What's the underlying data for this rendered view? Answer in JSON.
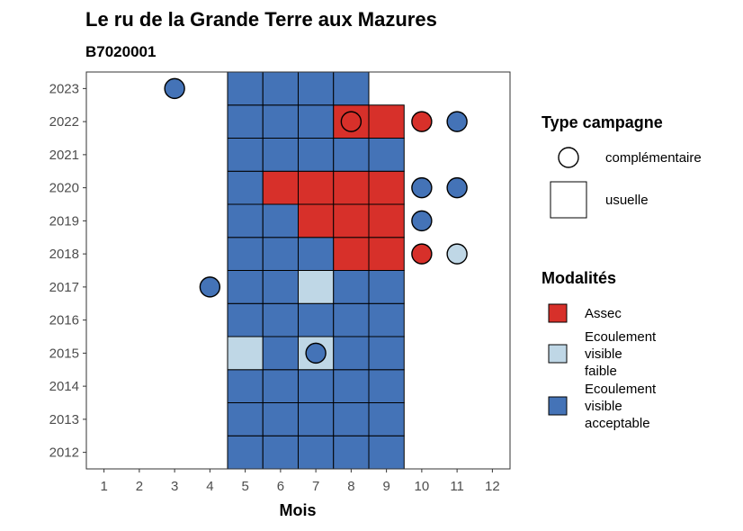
{
  "chart_data": {
    "type": "heatmap",
    "title": "Le ru de la Grande Terre aux Mazures",
    "subtitle": "B7020001",
    "xlabel": "Mois",
    "ylabel": "",
    "x_ticks": [
      1,
      2,
      3,
      4,
      5,
      6,
      7,
      8,
      9,
      10,
      11,
      12
    ],
    "y_ticks": [
      2012,
      2013,
      2014,
      2015,
      2016,
      2017,
      2018,
      2019,
      2020,
      2021,
      2022,
      2023
    ],
    "xlim": [
      0.5,
      12.5
    ],
    "ylim": [
      2011.5,
      2023.5
    ],
    "grid": false,
    "legend_position": "right",
    "colors": {
      "Assec": "#d7302a",
      "Ecoulement visible faible": "#bfd7e6",
      "Ecoulement visible acceptable": "#4473b7"
    },
    "legend_campagne": {
      "title": "Type campagne",
      "items": [
        {
          "label": "complémentaire",
          "shape": "circle"
        },
        {
          "label": "usuelle",
          "shape": "square"
        }
      ]
    },
    "legend_modalites": {
      "title": "Modalités",
      "items": [
        {
          "key": "Assec",
          "lines": [
            "Assec"
          ]
        },
        {
          "key": "Ecoulement visible faible",
          "lines": [
            "Ecoulement",
            "visible",
            "faible"
          ]
        },
        {
          "key": "Ecoulement visible acceptable",
          "lines": [
            "Ecoulement",
            "visible",
            "acceptable"
          ]
        }
      ]
    },
    "usuelle": [
      {
        "year": 2012,
        "month": 5,
        "value": "Ecoulement visible acceptable"
      },
      {
        "year": 2012,
        "month": 6,
        "value": "Ecoulement visible acceptable"
      },
      {
        "year": 2012,
        "month": 7,
        "value": "Ecoulement visible acceptable"
      },
      {
        "year": 2012,
        "month": 8,
        "value": "Ecoulement visible acceptable"
      },
      {
        "year": 2012,
        "month": 9,
        "value": "Ecoulement visible acceptable"
      },
      {
        "year": 2013,
        "month": 5,
        "value": "Ecoulement visible acceptable"
      },
      {
        "year": 2013,
        "month": 6,
        "value": "Ecoulement visible acceptable"
      },
      {
        "year": 2013,
        "month": 7,
        "value": "Ecoulement visible acceptable"
      },
      {
        "year": 2013,
        "month": 8,
        "value": "Ecoulement visible acceptable"
      },
      {
        "year": 2013,
        "month": 9,
        "value": "Ecoulement visible acceptable"
      },
      {
        "year": 2014,
        "month": 5,
        "value": "Ecoulement visible acceptable"
      },
      {
        "year": 2014,
        "month": 6,
        "value": "Ecoulement visible acceptable"
      },
      {
        "year": 2014,
        "month": 7,
        "value": "Ecoulement visible acceptable"
      },
      {
        "year": 2014,
        "month": 8,
        "value": "Ecoulement visible acceptable"
      },
      {
        "year": 2014,
        "month": 9,
        "value": "Ecoulement visible acceptable"
      },
      {
        "year": 2015,
        "month": 5,
        "value": "Ecoulement visible faible"
      },
      {
        "year": 2015,
        "month": 6,
        "value": "Ecoulement visible acceptable"
      },
      {
        "year": 2015,
        "month": 7,
        "value": "Ecoulement visible faible"
      },
      {
        "year": 2015,
        "month": 8,
        "value": "Ecoulement visible acceptable"
      },
      {
        "year": 2015,
        "month": 9,
        "value": "Ecoulement visible acceptable"
      },
      {
        "year": 2016,
        "month": 5,
        "value": "Ecoulement visible acceptable"
      },
      {
        "year": 2016,
        "month": 6,
        "value": "Ecoulement visible acceptable"
      },
      {
        "year": 2016,
        "month": 7,
        "value": "Ecoulement visible acceptable"
      },
      {
        "year": 2016,
        "month": 8,
        "value": "Ecoulement visible acceptable"
      },
      {
        "year": 2016,
        "month": 9,
        "value": "Ecoulement visible acceptable"
      },
      {
        "year": 2017,
        "month": 5,
        "value": "Ecoulement visible acceptable"
      },
      {
        "year": 2017,
        "month": 6,
        "value": "Ecoulement visible acceptable"
      },
      {
        "year": 2017,
        "month": 7,
        "value": "Ecoulement visible faible"
      },
      {
        "year": 2017,
        "month": 8,
        "value": "Ecoulement visible acceptable"
      },
      {
        "year": 2017,
        "month": 9,
        "value": "Ecoulement visible acceptable"
      },
      {
        "year": 2018,
        "month": 5,
        "value": "Ecoulement visible acceptable"
      },
      {
        "year": 2018,
        "month": 6,
        "value": "Ecoulement visible acceptable"
      },
      {
        "year": 2018,
        "month": 7,
        "value": "Ecoulement visible acceptable"
      },
      {
        "year": 2018,
        "month": 8,
        "value": "Assec"
      },
      {
        "year": 2018,
        "month": 9,
        "value": "Assec"
      },
      {
        "year": 2019,
        "month": 5,
        "value": "Ecoulement visible acceptable"
      },
      {
        "year": 2019,
        "month": 6,
        "value": "Ecoulement visible acceptable"
      },
      {
        "year": 2019,
        "month": 7,
        "value": "Assec"
      },
      {
        "year": 2019,
        "month": 8,
        "value": "Assec"
      },
      {
        "year": 2019,
        "month": 9,
        "value": "Assec"
      },
      {
        "year": 2020,
        "month": 5,
        "value": "Ecoulement visible acceptable"
      },
      {
        "year": 2020,
        "month": 6,
        "value": "Assec"
      },
      {
        "year": 2020,
        "month": 7,
        "value": "Assec"
      },
      {
        "year": 2020,
        "month": 8,
        "value": "Assec"
      },
      {
        "year": 2020,
        "month": 9,
        "value": "Assec"
      },
      {
        "year": 2021,
        "month": 5,
        "value": "Ecoulement visible acceptable"
      },
      {
        "year": 2021,
        "month": 6,
        "value": "Ecoulement visible acceptable"
      },
      {
        "year": 2021,
        "month": 7,
        "value": "Ecoulement visible acceptable"
      },
      {
        "year": 2021,
        "month": 8,
        "value": "Ecoulement visible acceptable"
      },
      {
        "year": 2021,
        "month": 9,
        "value": "Ecoulement visible acceptable"
      },
      {
        "year": 2022,
        "month": 5,
        "value": "Ecoulement visible acceptable"
      },
      {
        "year": 2022,
        "month": 6,
        "value": "Ecoulement visible acceptable"
      },
      {
        "year": 2022,
        "month": 7,
        "value": "Ecoulement visible acceptable"
      },
      {
        "year": 2022,
        "month": 8,
        "value": "Assec"
      },
      {
        "year": 2022,
        "month": 9,
        "value": "Assec"
      },
      {
        "year": 2023,
        "month": 5,
        "value": "Ecoulement visible acceptable"
      },
      {
        "year": 2023,
        "month": 6,
        "value": "Ecoulement visible acceptable"
      },
      {
        "year": 2023,
        "month": 7,
        "value": "Ecoulement visible acceptable"
      },
      {
        "year": 2023,
        "month": 8,
        "value": "Ecoulement visible acceptable"
      }
    ],
    "complementaire": [
      {
        "year": 2023,
        "month": 3,
        "value": "Ecoulement visible acceptable"
      },
      {
        "year": 2022,
        "month": 8,
        "value": "Assec"
      },
      {
        "year": 2022,
        "month": 10,
        "value": "Assec"
      },
      {
        "year": 2022,
        "month": 11,
        "value": "Ecoulement visible acceptable"
      },
      {
        "year": 2020,
        "month": 10,
        "value": "Ecoulement visible acceptable"
      },
      {
        "year": 2020,
        "month": 11,
        "value": "Ecoulement visible acceptable"
      },
      {
        "year": 2019,
        "month": 10,
        "value": "Ecoulement visible acceptable"
      },
      {
        "year": 2018,
        "month": 10,
        "value": "Assec"
      },
      {
        "year": 2018,
        "month": 11,
        "value": "Ecoulement visible faible"
      },
      {
        "year": 2017,
        "month": 4,
        "value": "Ecoulement visible acceptable"
      },
      {
        "year": 2015,
        "month": 7,
        "value": "Ecoulement visible acceptable"
      }
    ]
  }
}
